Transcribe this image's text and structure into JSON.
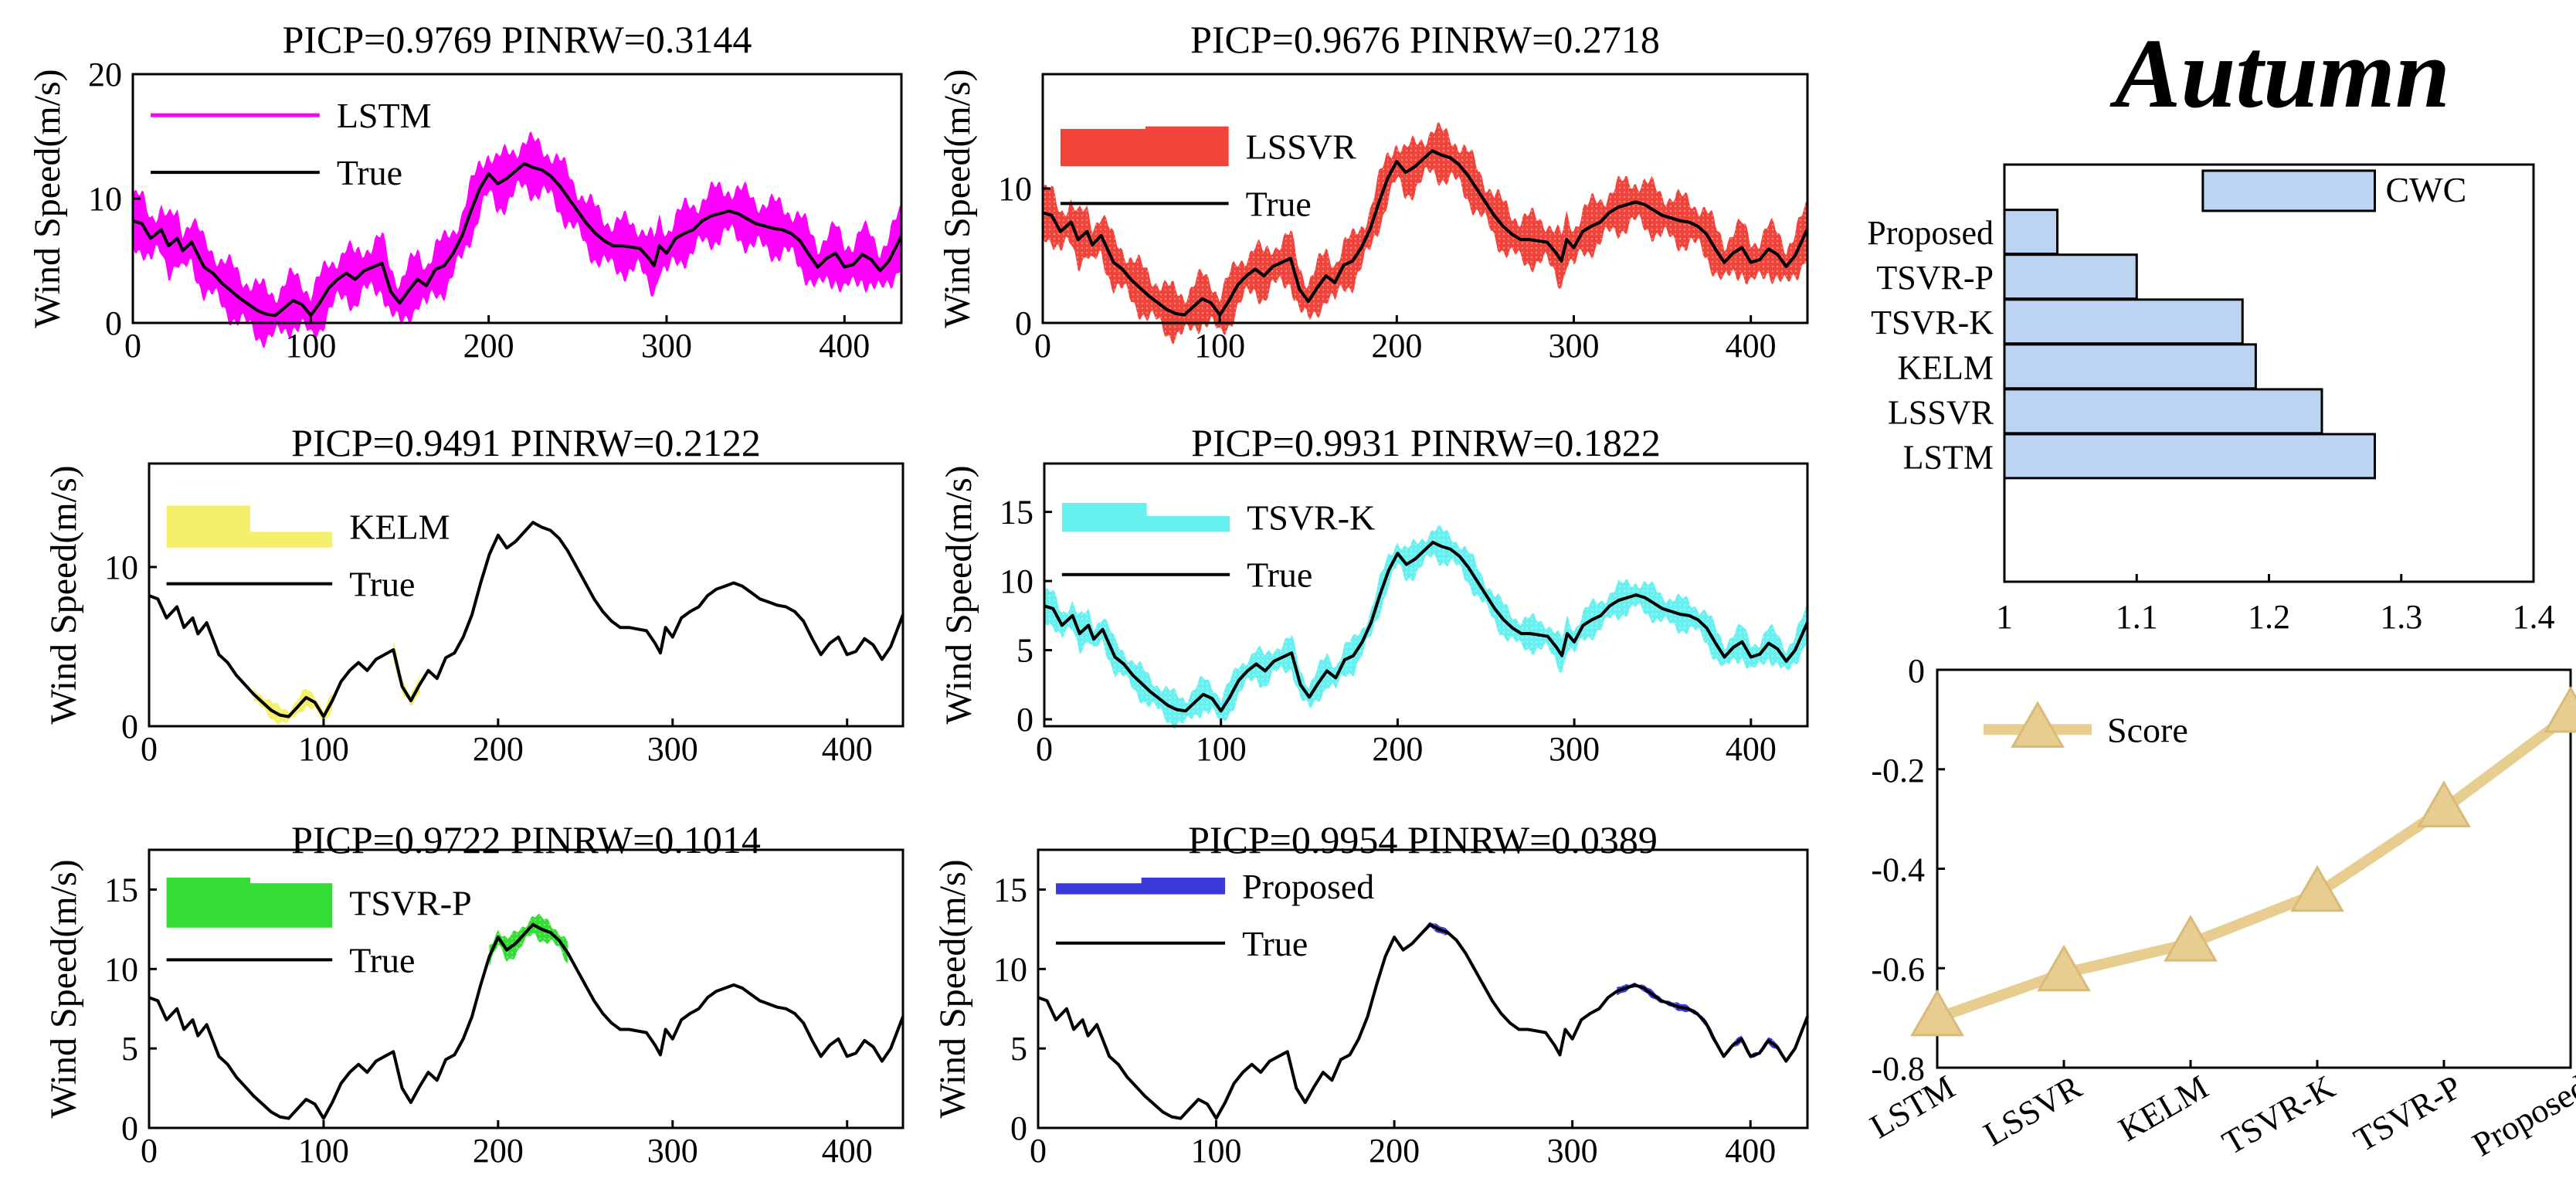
{
  "figure_title": "Autumn",
  "chart_data": [
    {
      "type": "line",
      "model": "LSTM",
      "title": "PICP=0.9769  PINRW=0.3144",
      "ylabel": "Wind Speed(m/s)",
      "xlabel": "",
      "xlim": [
        0,
        432
      ],
      "ylim": [
        0,
        20
      ],
      "xticks": [
        "0",
        "100",
        "200",
        "300",
        "400"
      ],
      "yticks": [
        "0",
        "10",
        "20"
      ],
      "band_color": "#ff00ff",
      "band_style": "solid",
      "half_width": 1.9,
      "legend": [
        "LSTM",
        "True"
      ],
      "legend_band_base": 0.82,
      "legend_band_tops": [
        0.86
      ]
    },
    {
      "type": "line",
      "model": "LSSVR",
      "title": "PICP=0.9676  PINRW=0.2718",
      "ylabel": "Wind Speed(m/s)",
      "xlabel": "",
      "xlim": [
        0,
        432
      ],
      "ylim": [
        0,
        18.5
      ],
      "xticks": [
        "0",
        "100",
        "200",
        "300",
        "400"
      ],
      "yticks": [
        "0",
        "10"
      ],
      "band_color": "#f0433a",
      "band_style": "dotted",
      "half_width": 1.6,
      "legend": [
        "LSSVR",
        "True"
      ],
      "legend_band_base": 0.63,
      "legend_band_tops": [
        0.78,
        0.79
      ]
    },
    {
      "type": "line",
      "model": "KELM",
      "title": "PICP=0.9491  PINRW=0.2122",
      "ylabel": "Wind Speed(m/s)",
      "xlabel": "",
      "xlim": [
        0,
        432
      ],
      "ylim": [
        0,
        16.5
      ],
      "xticks": [
        "0",
        "100",
        "200",
        "300",
        "400"
      ],
      "yticks": [
        "0",
        "10"
      ],
      "band_color": "#f5f06a",
      "band_style": "solid",
      "half_width": 0.45,
      "legend": [
        "KELM",
        "True"
      ],
      "legend_band_base": 0.68,
      "legend_band_tops": [
        0.84,
        0.74
      ],
      "band_segments": [
        [
          60,
          105
        ],
        [
          140,
          155
        ]
      ]
    },
    {
      "type": "line",
      "model": "TSVR-K",
      "title": "PICP=0.9931  PINRW=0.1822",
      "ylabel": "Wind Speed(m/s)",
      "xlabel": "",
      "xlim": [
        0,
        432
      ],
      "ylim": [
        -0.5,
        18.5
      ],
      "xticks": [
        "0",
        "100",
        "200",
        "300",
        "400"
      ],
      "yticks": [
        "0",
        "5",
        "10",
        "15"
      ],
      "band_color": "#66f0f0",
      "band_style": "dotted",
      "half_width": 1.0,
      "legend": [
        "TSVR-K",
        "True"
      ],
      "legend_band_base": 0.74,
      "legend_band_tops": [
        0.85,
        0.8
      ]
    },
    {
      "type": "line",
      "model": "TSVR-P",
      "title": "PICP=0.9722  PINRW=0.1014",
      "ylabel": "Wind Speed(m/s)",
      "xlabel": "",
      "xlim": [
        0,
        432
      ],
      "ylim": [
        0,
        17.5
      ],
      "xticks": [
        "0",
        "100",
        "200",
        "300",
        "400"
      ],
      "yticks": [
        "0",
        "5",
        "10",
        "15"
      ],
      "band_color": "#33dd33",
      "band_style": "dotted",
      "half_width": 0.6,
      "legend": [
        "TSVR-P",
        "True"
      ],
      "legend_band_base": 0.72,
      "legend_band_tops": [
        0.9,
        0.88
      ],
      "band_segments": [
        [
          195,
          240
        ]
      ]
    },
    {
      "type": "line",
      "model": "Proposed",
      "title": "PICP=0.9954  PINRW=0.0389",
      "ylabel": "Wind Speed(m/s)",
      "xlabel": "",
      "xlim": [
        0,
        432
      ],
      "ylim": [
        0,
        17.5
      ],
      "xticks": [
        "0",
        "100",
        "200",
        "300",
        "400"
      ],
      "yticks": [
        "0",
        "5",
        "10",
        "15"
      ],
      "band_color": "#3a3ad8",
      "band_style": "dotted",
      "half_width": 0.18,
      "legend": [
        "Proposed",
        "True"
      ],
      "legend_band_base": 0.84,
      "legend_band_tops": [
        0.88,
        0.9
      ],
      "band_segments": [
        [
          215,
          232
        ],
        [
          325,
          432
        ]
      ]
    },
    {
      "type": "bar",
      "orientation": "horizontal",
      "title": "",
      "categories": [
        "Proposed",
        "TSVR-P",
        "TSVR-K",
        "KELM",
        "LSSVR",
        "LSTM"
      ],
      "values": [
        1.04,
        1.1,
        1.18,
        1.19,
        1.24,
        1.28
      ],
      "xlim": [
        1,
        1.4
      ],
      "xticks": [
        "1",
        "1.1",
        "1.2",
        "1.3",
        "1.4"
      ],
      "legend": "CWC",
      "bar_color": "#bcd3f2",
      "legend_value": 1.28
    },
    {
      "type": "line",
      "title": "",
      "categories": [
        "LSTM",
        "LSSVR",
        "KELM",
        "TSVR-K",
        "TSVR-P",
        "Proposed"
      ],
      "values": [
        -0.7,
        -0.61,
        -0.55,
        -0.45,
        -0.28,
        -0.09
      ],
      "ylim": [
        -0.8,
        0
      ],
      "yticks": [
        "0",
        "-0.2",
        "-0.4",
        "-0.6",
        "-0.8"
      ],
      "legend": "Score",
      "line_color": "#e8cd90",
      "legend_value": -0.12
    }
  ],
  "true_series": {
    "x": [
      0,
      5,
      10,
      16,
      20,
      25,
      28,
      33,
      40,
      45,
      50,
      55,
      60,
      65,
      70,
      75,
      80,
      85,
      90,
      95,
      100,
      105,
      110,
      115,
      120,
      125,
      130,
      135,
      140,
      145,
      150,
      155,
      160,
      165,
      170,
      175,
      180,
      185,
      190,
      195,
      200,
      205,
      210,
      215,
      220,
      225,
      230,
      235,
      240,
      245,
      250,
      255,
      260,
      265,
      270,
      275,
      280,
      285,
      290,
      293,
      296,
      300,
      305,
      310,
      315,
      320,
      325,
      330,
      335,
      340,
      345,
      350,
      355,
      360,
      365,
      370,
      375,
      380,
      385,
      390,
      395,
      400,
      405,
      410,
      415,
      420,
      425,
      432
    ],
    "y": [
      8.2,
      8.0,
      6.8,
      7.5,
      6.2,
      6.8,
      5.8,
      6.5,
      4.5,
      4.0,
      3.2,
      2.6,
      2.0,
      1.5,
      1.0,
      0.7,
      0.6,
      1.2,
      1.8,
      1.5,
      0.6,
      1.6,
      2.8,
      3.5,
      4.0,
      3.5,
      4.2,
      4.5,
      4.8,
      2.5,
      1.6,
      2.6,
      3.5,
      3.0,
      4.3,
      4.6,
      5.6,
      7.0,
      9.0,
      10.8,
      12.0,
      11.2,
      11.6,
      12.2,
      12.8,
      12.5,
      12.3,
      11.8,
      11.0,
      10.0,
      9.0,
      8.0,
      7.2,
      6.6,
      6.2,
      6.2,
      6.1,
      6.0,
      5.2,
      4.6,
      6.2,
      5.6,
      6.8,
      7.2,
      7.5,
      8.2,
      8.6,
      8.8,
      9.0,
      8.8,
      8.4,
      8.0,
      7.8,
      7.6,
      7.5,
      7.2,
      6.6,
      5.5,
      4.5,
      5.2,
      5.6,
      4.5,
      4.7,
      5.5,
      5.1,
      4.2,
      5.0,
      7.0
    ]
  }
}
